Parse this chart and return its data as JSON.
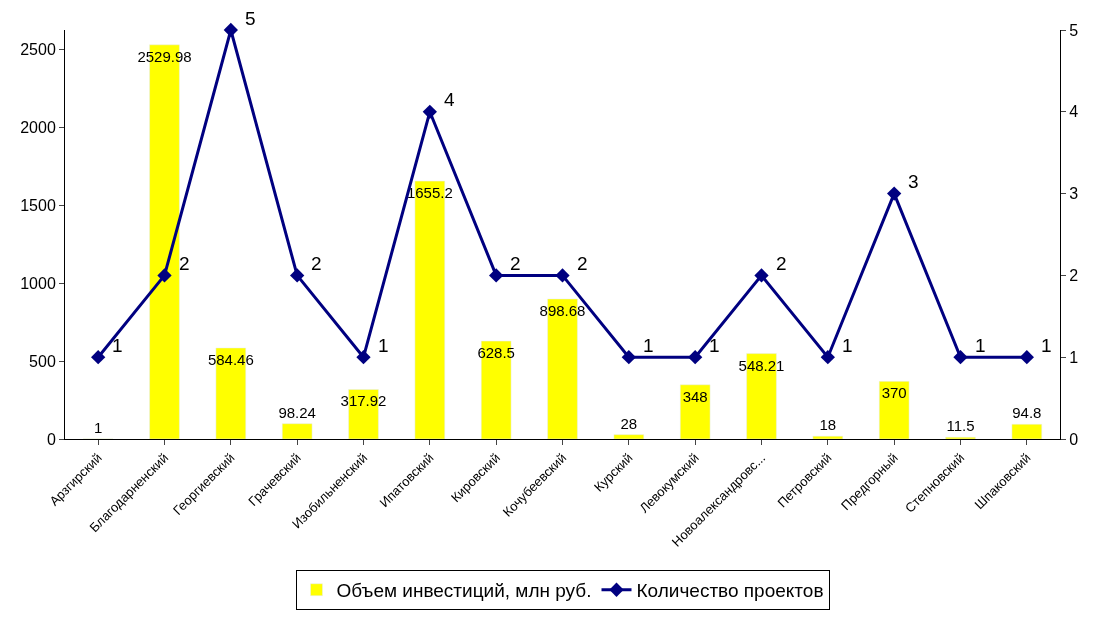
{
  "chart_data": {
    "type": "bar",
    "categories": [
      "Арзгирский",
      "Благодарненский",
      "Георгиевский",
      "Грачевский",
      "Изобильненский",
      "Ипатовский",
      "Кировский",
      "Кочубеевский",
      "Курский",
      "Левокумский",
      "Новоалександровс...",
      "Петровский",
      "Предгорный",
      "Степновский",
      "Шпаковский"
    ],
    "series": [
      {
        "name": "Объем инвестиций, млн руб.",
        "color": "#ffff00",
        "values": [
          1,
          2529.98,
          584.46,
          98.24,
          317.92,
          1655.2,
          628.5,
          898.68,
          28,
          348,
          548.21,
          18,
          370,
          11.5,
          94.8
        ]
      },
      {
        "name": "Количество проектов",
        "color": "#000080",
        "type": "line",
        "axis": "y2",
        "marker": "diamond",
        "values": [
          1,
          2,
          5,
          2,
          1,
          4,
          2,
          2,
          1,
          1,
          2,
          1,
          3,
          1,
          1
        ]
      }
    ],
    "ylim": [
      0,
      2625
    ],
    "yticks": [
      0,
      500,
      1000,
      1500,
      2000,
      2500
    ],
    "y2lim": [
      0,
      5
    ],
    "y2ticks": [
      0,
      1,
      2,
      3,
      4,
      5
    ],
    "data_labels": true,
    "legend": "bottom"
  }
}
